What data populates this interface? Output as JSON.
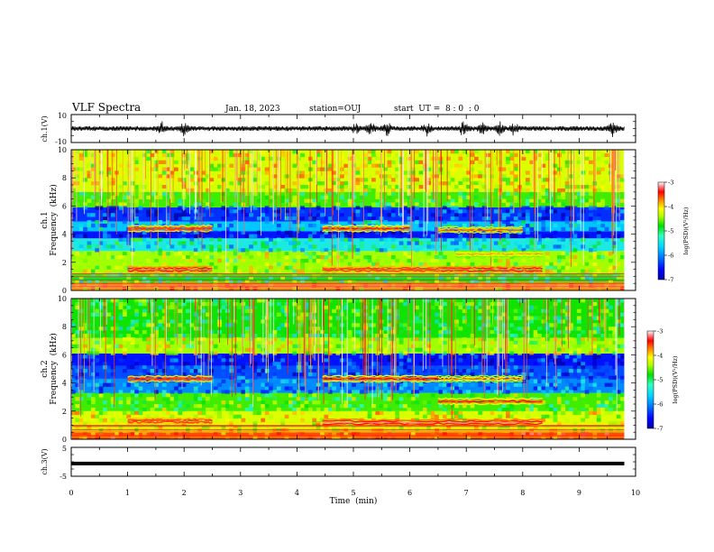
{
  "header": {
    "title": "VLF Spectra",
    "date": "Jan. 18, 2023",
    "station": "station=OUJ",
    "start_time": "start  UT =  8 : 0  : 0"
  },
  "chart_data": [
    {
      "name": "ch1-waveform",
      "type": "line",
      "ylabel": "ch.1(V)",
      "ylim": [
        -10,
        10
      ],
      "y_ticks": [
        "10",
        "-10"
      ],
      "description": "broadband waveform amplitude ~±2 V with bursts near 1.6, 5.0-5.6, 6.9-7.9 min",
      "amplitude_V": 1.6,
      "burst_times_min": [
        1.6,
        2.0,
        5.05,
        5.3,
        5.6,
        6.3,
        6.95,
        7.3,
        7.6,
        7.85,
        9.6
      ]
    },
    {
      "name": "ch1-spectrogram",
      "type": "heatmap",
      "ylabel_top": "ch.1",
      "ylabel": "Frequency  (kHz)",
      "ylim": [
        0,
        10
      ],
      "y_ticks": [
        "0",
        "2",
        "4",
        "6",
        "8",
        "10"
      ],
      "xlim": [
        0,
        10
      ],
      "colorbar": {
        "label": "log(PSD)(V²/Hz)",
        "range": [
          -7,
          -3
        ],
        "ticks": [
          "-3",
          "-4",
          "-5",
          "-6",
          "-7"
        ]
      },
      "bands_kHz": [
        {
          "f0": 0,
          "f1": 0.6,
          "level": -4.4
        },
        {
          "f0": 0.6,
          "f1": 1.2,
          "level": -5.4
        },
        {
          "f0": 1.2,
          "f1": 2.8,
          "level": -5.0
        },
        {
          "f0": 2.8,
          "f1": 3.7,
          "level": -5.8
        },
        {
          "f0": 3.7,
          "f1": 4.2,
          "level": -6.6
        },
        {
          "f0": 4.2,
          "f1": 4.9,
          "level": -6.0
        },
        {
          "f0": 4.9,
          "f1": 5.9,
          "level": -6.5
        },
        {
          "f0": 5.9,
          "f1": 7.0,
          "level": -5.2
        },
        {
          "f0": 7.0,
          "f1": 10.0,
          "level": -4.8
        }
      ],
      "emission_segments": [
        {
          "t0": 1.0,
          "t1": 2.5,
          "f": 4.4,
          "level": -3.9
        },
        {
          "t0": 1.0,
          "t1": 2.5,
          "f": 1.5,
          "level": -3.7
        },
        {
          "t0": 4.45,
          "t1": 6.0,
          "f": 4.4,
          "level": -4.0
        },
        {
          "t0": 4.45,
          "t1": 6.5,
          "f": 1.5,
          "level": -3.8
        },
        {
          "t0": 6.5,
          "t1": 8.35,
          "f": 1.5,
          "level": -3.7
        },
        {
          "t0": 6.5,
          "t1": 8.0,
          "f": 4.3,
          "level": -4.2
        },
        {
          "t0": 6.8,
          "t1": 8.35,
          "f": 2.6,
          "level": -4.4
        }
      ]
    },
    {
      "name": "ch2-spectrogram",
      "type": "heatmap",
      "ylabel_top": "ch.2",
      "ylabel": "Frequency  (kHz)",
      "ylim": [
        0,
        10
      ],
      "y_ticks": [
        "0",
        "2",
        "4",
        "6",
        "8",
        "10"
      ],
      "xlim": [
        0,
        10
      ],
      "colorbar": {
        "label": "log(PSD)(V²/Hz)",
        "range": [
          -7,
          -3
        ],
        "ticks": [
          "-3",
          "-4",
          "-5",
          "-6",
          "-7"
        ]
      },
      "bands_kHz": [
        {
          "f0": 0,
          "f1": 0.5,
          "level": -4.2
        },
        {
          "f0": 0.5,
          "f1": 2.0,
          "level": -4.8
        },
        {
          "f0": 2.0,
          "f1": 3.3,
          "level": -5.2
        },
        {
          "f0": 3.3,
          "f1": 4.3,
          "level": -6.2
        },
        {
          "f0": 4.3,
          "f1": 5.2,
          "level": -6.4
        },
        {
          "f0": 5.2,
          "f1": 6.1,
          "level": -6.6
        },
        {
          "f0": 6.1,
          "f1": 7.2,
          "level": -5.0
        },
        {
          "f0": 7.2,
          "f1": 10.0,
          "level": -5.3
        }
      ],
      "emission_segments": [
        {
          "t0": 1.0,
          "t1": 2.5,
          "f": 4.3,
          "level": -3.9
        },
        {
          "t0": 1.0,
          "t1": 2.5,
          "f": 1.3,
          "level": -3.8
        },
        {
          "t0": 4.45,
          "t1": 6.5,
          "f": 4.3,
          "level": -4.0
        },
        {
          "t0": 4.45,
          "t1": 8.35,
          "f": 1.2,
          "level": -3.6
        },
        {
          "t0": 6.5,
          "t1": 8.35,
          "f": 2.7,
          "level": -4.0
        },
        {
          "t0": 6.5,
          "t1": 8.0,
          "f": 4.3,
          "level": -4.3
        }
      ]
    },
    {
      "name": "ch3-waveform",
      "type": "line",
      "ylabel": "ch.3(V)",
      "ylim": [
        -5,
        5
      ],
      "y_ticks": [
        "5",
        "-5"
      ],
      "level_V": -0.6
    }
  ],
  "x_axis": {
    "label": "Time  (min)",
    "range": [
      0,
      10
    ],
    "ticks": [
      "0",
      "1",
      "2",
      "3",
      "4",
      "5",
      "6",
      "7",
      "8",
      "9",
      "10"
    ]
  },
  "colors": {
    "colormap": [
      "#0000a0",
      "#0000ff",
      "#0060ff",
      "#00c8ff",
      "#30ffd0",
      "#00e000",
      "#a0ff00",
      "#ffff00",
      "#ff8000",
      "#ff0000",
      "#ff7070",
      "#ffe0e0",
      "#ffffff"
    ]
  }
}
